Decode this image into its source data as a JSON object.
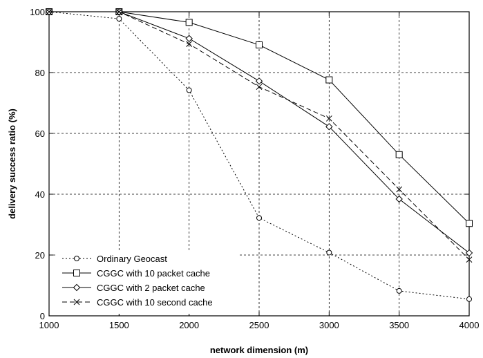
{
  "chart_data": {
    "type": "line",
    "xlabel": "network dimension (m)",
    "ylabel": "delivery success ratio (%)",
    "xlim": [
      1000,
      4000
    ],
    "ylim": [
      0,
      100
    ],
    "x_ticks": [
      1000,
      1500,
      2000,
      2500,
      3000,
      3500,
      4000
    ],
    "y_ticks": [
      0,
      20,
      40,
      60,
      80,
      100
    ],
    "grid": true,
    "legend_position": "bottom-left",
    "x": [
      1000,
      1500,
      2000,
      2500,
      3000,
      3500,
      4000
    ],
    "series": [
      {
        "name": "Ordinary Geocast",
        "values": [
          100,
          97.7,
          74.2,
          32.2,
          20.8,
          8.2,
          5.5
        ],
        "line_style": "dotted",
        "marker": "circle"
      },
      {
        "name": "CGGC with 10 packet cache",
        "values": [
          100,
          100,
          96.5,
          89.1,
          77.6,
          53.0,
          30.4
        ],
        "line_style": "solid",
        "marker": "square"
      },
      {
        "name": "CGGC with 2 packet cache",
        "values": [
          100,
          100,
          91.2,
          77.2,
          62.2,
          38.4,
          20.7
        ],
        "line_style": "solid",
        "marker": "diamond"
      },
      {
        "name": "CGGC with 10 second cache",
        "values": [
          100,
          100,
          89.4,
          75.3,
          64.9,
          41.6,
          18.5
        ],
        "line_style": "dashed",
        "marker": "x"
      }
    ]
  }
}
